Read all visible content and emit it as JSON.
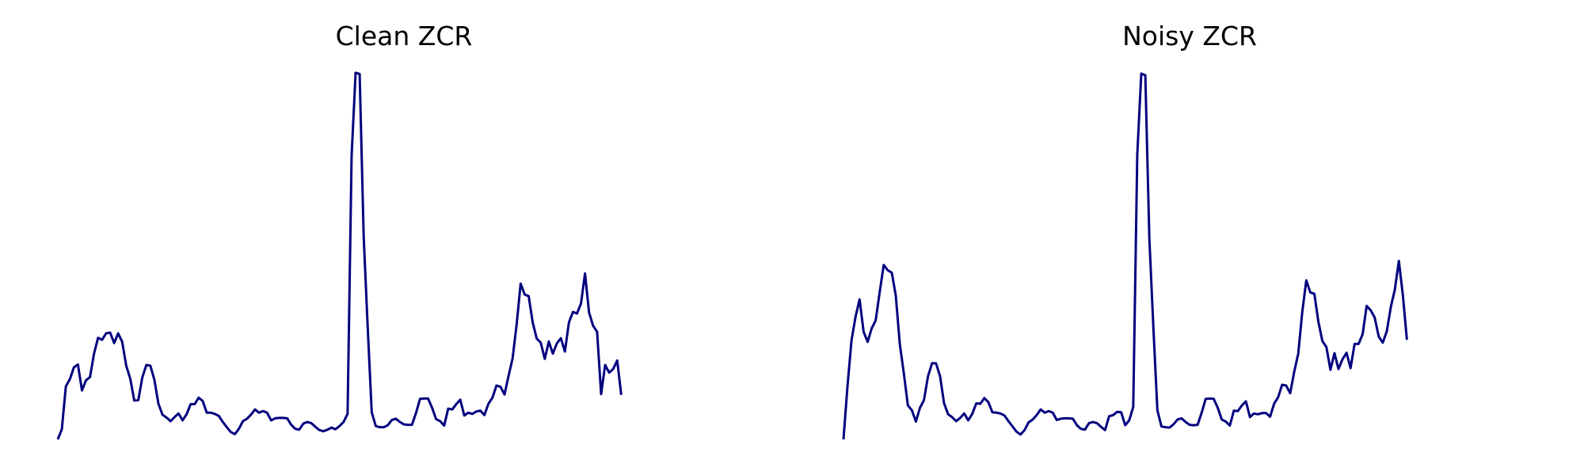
{
  "chart_data": [
    {
      "type": "line",
      "title": "Clean ZCR",
      "xlabel": "",
      "ylabel": "",
      "axes_visible": false,
      "grid": false,
      "line_color": "#00007f",
      "xlim": [
        0,
        172
      ],
      "ylim": [
        0,
        0.9
      ],
      "series": [
        {
          "values": [
            0.0,
            0.025,
            0.131,
            0.149,
            0.178,
            0.185,
            0.121,
            0.146,
            0.154,
            0.212,
            0.251,
            0.246,
            0.262,
            0.264,
            0.238,
            0.262,
            0.241,
            0.182,
            0.15,
            0.096,
            0.097,
            0.153,
            0.184,
            0.182,
            0.147,
            0.088,
            0.061,
            0.054,
            0.045,
            0.055,
            0.064,
            0.047,
            0.062,
            0.087,
            0.087,
            0.103,
            0.095,
            0.066,
            0.066,
            0.063,
            0.058,
            0.043,
            0.03,
            0.018,
            0.013,
            0.026,
            0.045,
            0.051,
            0.061,
            0.074,
            0.066,
            0.07,
            0.066,
            0.047,
            0.052,
            0.053,
            0.053,
            0.052,
            0.036,
            0.026,
            0.024,
            0.039,
            0.043,
            0.04,
            0.031,
            0.023,
            0.02,
            0.024,
            0.029,
            0.025,
            0.033,
            0.043,
            0.063,
            0.7,
            0.906,
            0.903,
            0.502,
            0.277,
            0.067,
            0.033,
            0.03,
            0.03,
            0.035,
            0.048,
            0.051,
            0.043,
            0.037,
            0.036,
            0.036,
            0.065,
            0.1,
            0.101,
            0.101,
            0.078,
            0.05,
            0.045,
            0.034,
            0.076,
            0.074,
            0.087,
            0.098,
            0.059,
            0.066,
            0.063,
            0.069,
            0.071,
            0.06,
            0.088,
            0.103,
            0.133,
            0.13,
            0.111,
            0.157,
            0.2,
            0.283,
            0.385,
            0.358,
            0.354,
            0.289,
            0.249,
            0.239,
            0.199,
            0.242,
            0.212,
            0.237,
            0.25,
            0.217,
            0.289,
            0.315,
            0.311,
            0.336,
            0.41,
            0.314,
            0.281,
            0.266,
            0.112,
            0.184,
            0.165,
            0.174,
            0.195,
            0.11
          ]
        }
      ]
    },
    {
      "type": "line",
      "title": "Noisy ZCR",
      "xlabel": "",
      "ylabel": "",
      "axes_visible": false,
      "grid": false,
      "line_color": "#00007f",
      "xlim": [
        0,
        172
      ],
      "ylim": [
        0,
        0.9
      ],
      "series": [
        {
          "values": [
            0.0,
            0.132,
            0.245,
            0.303,
            0.346,
            0.266,
            0.241,
            0.274,
            0.294,
            0.364,
            0.431,
            0.418,
            0.412,
            0.355,
            0.235,
            0.163,
            0.084,
            0.072,
            0.044,
            0.078,
            0.097,
            0.156,
            0.188,
            0.188,
            0.156,
            0.089,
            0.062,
            0.055,
            0.045,
            0.053,
            0.064,
            0.047,
            0.063,
            0.089,
            0.088,
            0.102,
            0.092,
            0.067,
            0.066,
            0.064,
            0.059,
            0.045,
            0.032,
            0.019,
            0.012,
            0.023,
            0.042,
            0.049,
            0.06,
            0.074,
            0.066,
            0.07,
            0.066,
            0.048,
            0.051,
            0.052,
            0.052,
            0.051,
            0.035,
            0.026,
            0.024,
            0.04,
            0.043,
            0.04,
            0.031,
            0.023,
            0.057,
            0.06,
            0.068,
            0.067,
            0.035,
            0.047,
            0.08,
            0.704,
            0.904,
            0.9,
            0.497,
            0.277,
            0.072,
            0.032,
            0.03,
            0.029,
            0.037,
            0.049,
            0.052,
            0.043,
            0.036,
            0.035,
            0.036,
            0.066,
            0.1,
            0.101,
            0.1,
            0.078,
            0.049,
            0.044,
            0.034,
            0.071,
            0.07,
            0.084,
            0.094,
            0.055,
            0.064,
            0.062,
            0.065,
            0.065,
            0.056,
            0.088,
            0.104,
            0.135,
            0.133,
            0.114,
            0.167,
            0.212,
            0.315,
            0.393,
            0.363,
            0.36,
            0.291,
            0.243,
            0.228,
            0.172,
            0.213,
            0.174,
            0.198,
            0.214,
            0.176,
            0.236,
            0.236,
            0.26,
            0.33,
            0.319,
            0.301,
            0.254,
            0.239,
            0.267,
            0.327,
            0.37,
            0.441,
            0.356,
            0.246
          ]
        }
      ]
    }
  ]
}
